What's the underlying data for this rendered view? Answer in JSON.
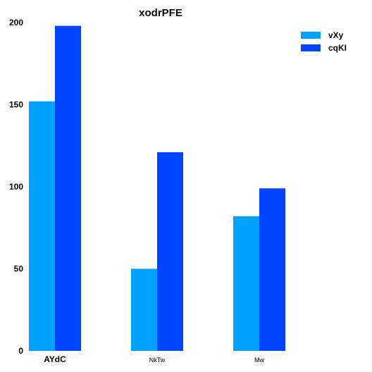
{
  "chart_data": {
    "type": "bar",
    "title": "xodrPFE",
    "xlabel": "",
    "ylabel": "",
    "categories": [
      "AYdC",
      "NkTw",
      "Mw"
    ],
    "series": [
      {
        "name": "vXy",
        "values": [
          152,
          50,
          82
        ],
        "color": "#00a2ff"
      },
      {
        "name": "cqKI",
        "values": [
          198,
          121,
          99
        ],
        "color": "#0044ff"
      }
    ],
    "ylim": [
      0,
      200
    ],
    "yticks": [
      0,
      50,
      100,
      150,
      200
    ],
    "grid": false,
    "legend_position": "top-right"
  }
}
